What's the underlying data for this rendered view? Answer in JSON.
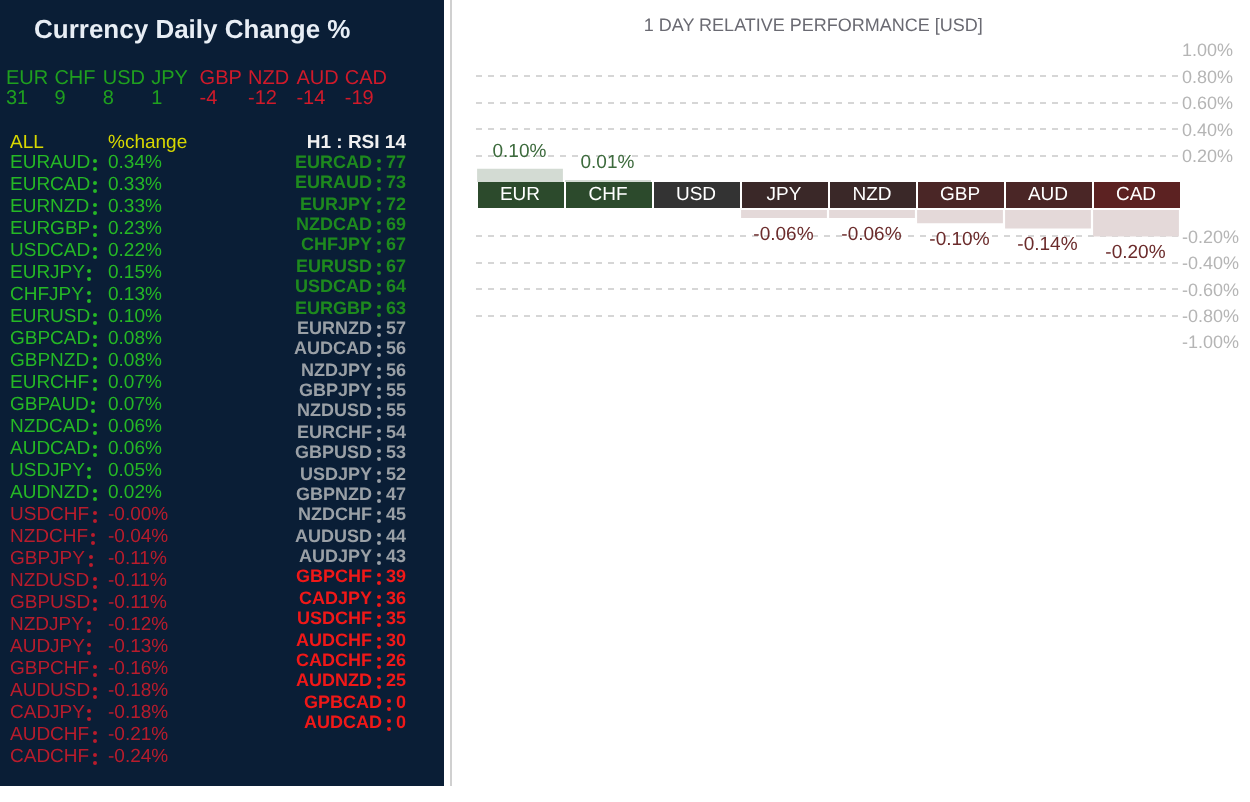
{
  "chart_data": [
    {
      "type": "other",
      "title": "Currency Daily Change %",
      "data_labels": true,
      "categories": [
        "EUR",
        "CHF",
        "USD",
        "JPY",
        "GBP",
        "NZD",
        "AUD",
        "CAD"
      ],
      "values": [
        31,
        9,
        8,
        1,
        -4,
        -12,
        -14,
        -19
      ],
      "colors": [
        "#1fa01f",
        "#1fa01f",
        "#1fa01f",
        "#1fa01f",
        "#d01a2a",
        "#d01a2a",
        "#d01a2a",
        "#d01a2a"
      ]
    },
    {
      "type": "other",
      "annotations": [
        "ALL",
        "%change"
      ],
      "categories": [
        "EURAUD",
        "EURCAD",
        "EURNZD",
        "EURGBP",
        "USDCAD",
        "EURJPY",
        "CHFJPY",
        "EURUSD",
        "GBPCAD",
        "GBPNZD",
        "EURCHF",
        "GBPAUD",
        "NZDCAD",
        "AUDCAD",
        "USDJPY",
        "AUDNZD",
        "USDCHF",
        "NZDCHF",
        "GBPJPY",
        "NZDUSD",
        "GBPUSD",
        "NZDJPY",
        "AUDJPY",
        "GBPCHF",
        "AUDUSD",
        "CADJPY",
        "AUDCHF",
        "CADCHF"
      ],
      "value_labels": [
        "0.34%",
        "0.33%",
        "0.33%",
        "0.23%",
        "0.22%",
        "0.15%",
        "0.13%",
        "0.10%",
        "0.08%",
        "0.08%",
        "0.07%",
        "0.07%",
        "0.06%",
        "0.06%",
        "0.05%",
        "0.02%",
        "-0.00%",
        "-0.04%",
        "-0.11%",
        "-0.11%",
        "-0.11%",
        "-0.12%",
        "-0.13%",
        "-0.16%",
        "-0.18%",
        "-0.18%",
        "-0.21%",
        "-0.24%"
      ],
      "colors": [
        "#25b825",
        "#25b825",
        "#25b825",
        "#25b825",
        "#25b825",
        "#25b825",
        "#25b825",
        "#25b825",
        "#25b825",
        "#25b825",
        "#25b825",
        "#25b825",
        "#25b825",
        "#25b825",
        "#25b825",
        "#25b825",
        "#b81c2c",
        "#b81c2c",
        "#b81c2c",
        "#b81c2c",
        "#b81c2c",
        "#b81c2c",
        "#b81c2c",
        "#b81c2c",
        "#b81c2c",
        "#b81c2c",
        "#b81c2c",
        "#b81c2c"
      ]
    },
    {
      "type": "other",
      "title": "H1 : RSI 14",
      "data_labels": true,
      "categories": [
        "EURCAD",
        "EURAUD",
        "EURJPY",
        "NZDCAD",
        "CHFJPY",
        "EURUSD",
        "USDCAD",
        "EURGBP",
        "EURNZD",
        "AUDCAD",
        "NZDJPY",
        "GBPJPY",
        "NZDUSD",
        "EURCHF",
        "GBPUSD",
        "USDJPY",
        "GBPNZD",
        "NZDCHF",
        "AUDUSD",
        "AUDJPY",
        "GBPCHF",
        "CADJPY",
        "USDCHF",
        "AUDCHF",
        "CADCHF",
        "AUDNZD",
        "GPBCAD",
        "AUDCAD"
      ],
      "values": [
        77,
        73,
        72,
        69,
        67,
        67,
        64,
        63,
        57,
        56,
        56,
        55,
        55,
        54,
        53,
        52,
        47,
        45,
        44,
        43,
        39,
        36,
        35,
        30,
        26,
        25,
        0,
        0
      ],
      "colors": [
        "#1e8a1e",
        "#1e8a1e",
        "#1e8a1e",
        "#1e8a1e",
        "#1e8a1e",
        "#1e8a1e",
        "#1e8a1e",
        "#1e8a1e",
        "#9aa0a6",
        "#9aa0a6",
        "#9aa0a6",
        "#9aa0a6",
        "#9aa0a6",
        "#9aa0a6",
        "#9aa0a6",
        "#9aa0a6",
        "#9aa0a6",
        "#9aa0a6",
        "#9aa0a6",
        "#9aa0a6",
        "#f01818",
        "#f01818",
        "#f01818",
        "#f01818",
        "#f01818",
        "#f01818",
        "#f01818",
        "#f01818"
      ]
    },
    {
      "type": "bar",
      "title": "1 DAY RELATIVE PERFORMANCE [USD]",
      "categories": [
        "EUR",
        "CHF",
        "USD",
        "JPY",
        "NZD",
        "GBP",
        "AUD",
        "CAD"
      ],
      "series": [
        {
          "color": "#d3dbd3",
          "values": [
            0.1,
            0.01,
            null,
            null,
            null,
            null,
            null,
            null
          ],
          "value_labels": [
            "0.10%",
            "0.01%",
            null,
            null,
            null,
            null,
            null,
            null
          ]
        }
      ],
      "ylim": [
        0,
        1
      ],
      "yticks": [
        {
          "value": 1,
          "label": "1.00%"
        },
        {
          "value": 0.8,
          "label": "0.80%"
        },
        {
          "value": 0.6,
          "label": "0.60%"
        },
        {
          "value": 0.4,
          "label": "0.40%"
        },
        {
          "value": 0.2,
          "label": "0.20%"
        }
      ],
      "grid": "y"
    },
    {
      "type": "bar",
      "categories": [
        null,
        null,
        null,
        null,
        null,
        null,
        null,
        null
      ],
      "tick_labels": "y",
      "series": [
        {
          "color": "#e4d9d9",
          "values": [
            null,
            null,
            null,
            -0.06,
            -0.06,
            -0.1,
            -0.14,
            -0.2
          ],
          "value_labels": [
            null,
            null,
            null,
            "-0.06%",
            "-0.06%",
            "-0.10%",
            "-0.14%",
            "-0.20%"
          ]
        }
      ],
      "ylim": [
        -1,
        0
      ],
      "yticks": [
        {
          "value": -0.2,
          "label": "-0.20%"
        },
        {
          "value": -0.4,
          "label": "-0.40%"
        },
        {
          "value": -0.6,
          "label": "-0.60%"
        },
        {
          "value": -0.8,
          "label": "-0.80%"
        },
        {
          "value": -1,
          "label": "-1.00%"
        }
      ],
      "grid": "y"
    }
  ]
}
